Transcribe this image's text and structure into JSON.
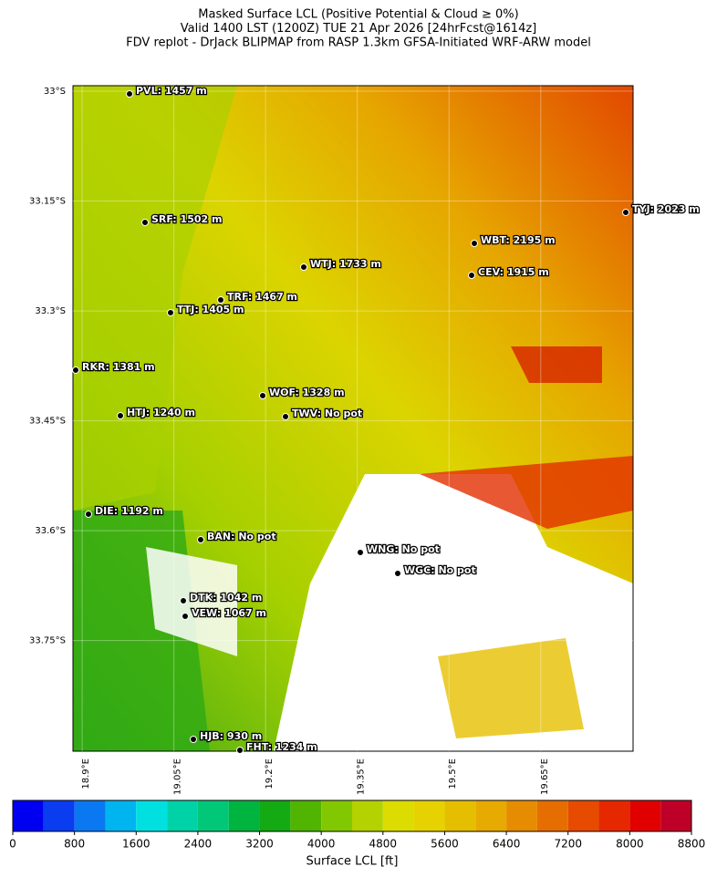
{
  "title": [
    "Masked Surface LCL (Positive Potential & Cloud ≥ 0%)",
    "Valid 1400 LST (1200Z) TUE 21 Apr 2026 [24hrFcst@1614z]",
    "FDV replot - DrJack BLIPMAP from RASP 1.3km GFSA-Initiated WRF-ARW model"
  ],
  "map": {
    "xlim": [
      18.885,
      19.801
    ],
    "ylim": [
      -32.9925,
      -33.901
    ],
    "xticks": [
      {
        "value": 18.9,
        "label": "18.9°E"
      },
      {
        "value": 19.05,
        "label": "19.05°E"
      },
      {
        "value": 19.2,
        "label": "19.2°E"
      },
      {
        "value": 19.35,
        "label": "19.35°E"
      },
      {
        "value": 19.5,
        "label": "19.5°E"
      },
      {
        "value": 19.65,
        "label": "19.65°E"
      }
    ],
    "yticks": [
      {
        "value": -33.0,
        "label": "33°S"
      },
      {
        "value": -33.15,
        "label": "33.15°S"
      },
      {
        "value": -33.3,
        "label": "33.3°S"
      },
      {
        "value": -33.45,
        "label": "33.45°S"
      },
      {
        "value": -33.6,
        "label": "33.6°S"
      },
      {
        "value": -33.75,
        "label": "33.75°S"
      }
    ],
    "stations": [
      "PVL: 1457 m",
      "SRF: 1502 m",
      "WTJ: 1733 m",
      "TRF: 1467 m",
      "TTJ: 1405 m",
      "RKR: 1381 m",
      "WOF: 1328 m",
      "HTJ: 1240 m",
      "TWV: No pot",
      "WBT: 2195 m",
      "CEV: 1915 m",
      "TYJ: 2023 m",
      "DIE: 1192 m",
      "BAN: No pot",
      "WNG: No pot",
      "WGC: No pot",
      "DTK: 1042 m",
      "VEW: 1067 m",
      "HJB: 930 m",
      "FHT: 1234 m"
    ]
  },
  "colorbar": {
    "label": "Surface LCL [ft]",
    "levels": [
      0,
      400,
      800,
      1200,
      1600,
      2000,
      2400,
      2800,
      3200,
      3600,
      4000,
      4400,
      4800,
      5200,
      5600,
      6000,
      6400,
      6800,
      7200,
      7600,
      8000,
      8400,
      8800
    ],
    "colors": [
      "#0000f0",
      "#0a3cf0",
      "#0a78f0",
      "#00b4f0",
      "#00e0e0",
      "#00d2a8",
      "#00c878",
      "#00b440",
      "#14aa14",
      "#50b400",
      "#82c800",
      "#b4d200",
      "#dcdc00",
      "#e6d200",
      "#e6be00",
      "#e6aa00",
      "#e68c00",
      "#e66e00",
      "#e64b00",
      "#e62800",
      "#e10000",
      "#be0028"
    ],
    "ticks": [
      0,
      800,
      1600,
      2400,
      3200,
      4000,
      4800,
      5600,
      6400,
      7200,
      8000,
      8800
    ]
  }
}
